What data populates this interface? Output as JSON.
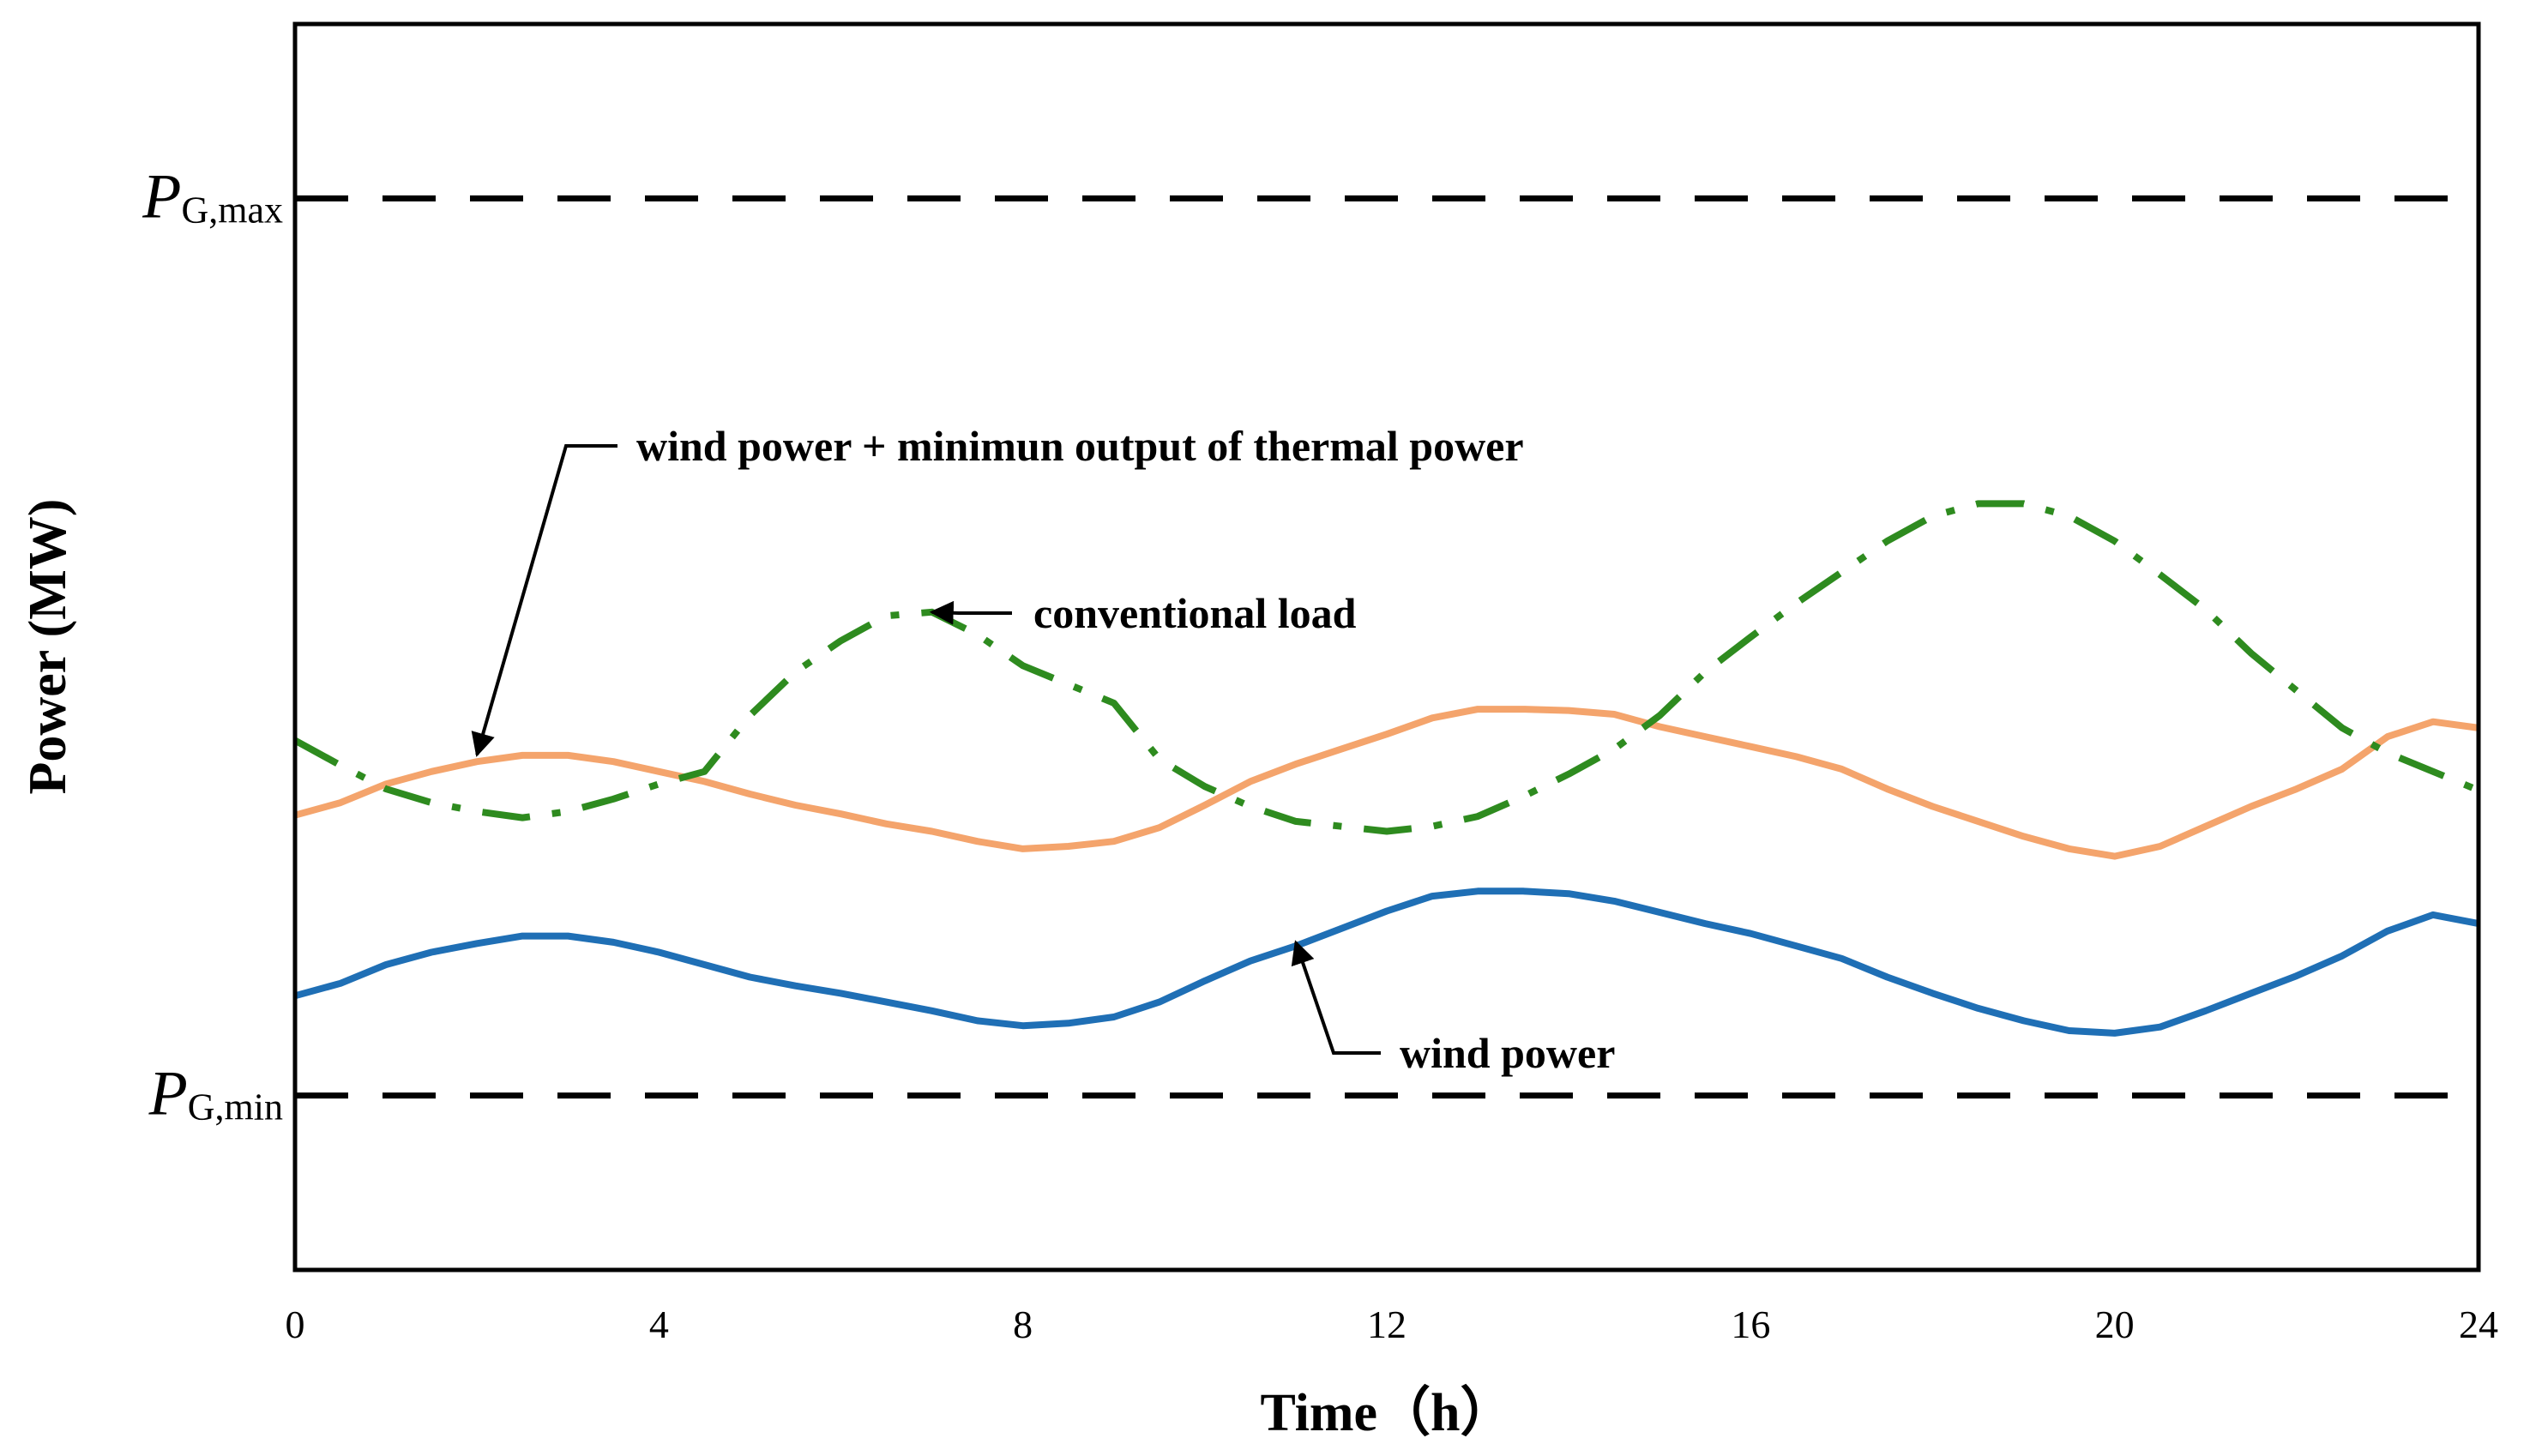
{
  "chart_data": {
    "type": "line",
    "title": "",
    "xlabel": "Time（h）",
    "ylabel": "Power (MW)",
    "xlim": [
      0,
      24
    ],
    "ylim": [
      0,
      100
    ],
    "xticks": [
      "0",
      "4",
      "8",
      "12",
      "16",
      "20",
      "24"
    ],
    "grid": false,
    "reference_lines": [
      {
        "id": "pgmax",
        "prefix": "P",
        "subscript": "G,max",
        "y": 86,
        "style": "dashed",
        "color": "#000000"
      },
      {
        "id": "pgmin",
        "prefix": "P",
        "subscript": "G,min",
        "y": 14,
        "style": "dashed",
        "color": "#000000"
      }
    ],
    "series": [
      {
        "name": "wind power",
        "style": "solid",
        "color": "#1F6FB5",
        "x": [
          0,
          0.5,
          1,
          1.5,
          2,
          2.5,
          3,
          3.5,
          4,
          4.5,
          5,
          5.5,
          6,
          6.5,
          7,
          7.5,
          8,
          8.5,
          9,
          9.5,
          10,
          10.5,
          11,
          11.5,
          12,
          12.5,
          13,
          13.5,
          14,
          14.5,
          15,
          15.5,
          16,
          16.5,
          17,
          17.5,
          18,
          18.5,
          19,
          19.5,
          20,
          20.5,
          21,
          21.5,
          22,
          22.5,
          23,
          23.5,
          24
        ],
        "values": [
          22,
          23,
          24.5,
          25.5,
          26.2,
          26.8,
          26.8,
          26.3,
          25.5,
          24.5,
          23.5,
          22.8,
          22.2,
          21.5,
          20.8,
          20,
          19.6,
          19.8,
          20.3,
          21.5,
          23.2,
          24.8,
          26,
          27.4,
          28.8,
          30,
          30.4,
          30.4,
          30.2,
          29.6,
          28.7,
          27.8,
          27,
          26,
          25,
          23.5,
          22.2,
          21,
          20,
          19.2,
          19,
          19.5,
          20.8,
          22.2,
          23.6,
          25.2,
          27.2,
          28.5,
          27.8
        ]
      },
      {
        "name": "wind power + minimun output of thermal power",
        "style": "solid",
        "color": "#F4A46C",
        "x": [
          0,
          0.5,
          1,
          1.5,
          2,
          2.5,
          3,
          3.5,
          4,
          4.5,
          5,
          5.5,
          6,
          6.5,
          7,
          7.5,
          8,
          8.5,
          9,
          9.5,
          10,
          10.5,
          11,
          11.5,
          12,
          12.5,
          13,
          13.5,
          14,
          14.5,
          15,
          15.5,
          16,
          16.5,
          17,
          17.5,
          18,
          18.5,
          19,
          19.5,
          20,
          20.5,
          21,
          21.5,
          22,
          22.5,
          23,
          23.5,
          24
        ],
        "values": [
          36.5,
          37.5,
          39,
          40,
          40.8,
          41.3,
          41.3,
          40.8,
          40,
          39.2,
          38.2,
          37.3,
          36.6,
          35.8,
          35.2,
          34.4,
          33.8,
          34,
          34.4,
          35.5,
          37.3,
          39.2,
          40.6,
          41.8,
          43,
          44.3,
          45,
          45,
          44.9,
          44.6,
          43.6,
          42.8,
          42,
          41.2,
          40.2,
          38.6,
          37.2,
          36,
          34.8,
          33.8,
          33.2,
          34,
          35.6,
          37.2,
          38.6,
          40.2,
          42.8,
          44,
          43.5
        ]
      },
      {
        "name": "conventional load",
        "style": "dashdot",
        "color": "#2E8B1F",
        "x": [
          0,
          0.5,
          1,
          1.5,
          2,
          2.5,
          3,
          3.5,
          4,
          4.5,
          5,
          5.5,
          6,
          6.5,
          7,
          7.5,
          8,
          8.5,
          9,
          9.5,
          10,
          10.5,
          11,
          11.5,
          12,
          12.5,
          13,
          13.5,
          14,
          14.5,
          15,
          15.5,
          16,
          16.5,
          17,
          17.5,
          18,
          18.5,
          19,
          19.5,
          20,
          20.5,
          21,
          21.5,
          22,
          22.5,
          23,
          23.5,
          24
        ],
        "values": [
          42.5,
          40.5,
          38.6,
          37.5,
          36.8,
          36.3,
          36.8,
          37.8,
          39,
          40,
          44.5,
          48,
          50.5,
          52.5,
          52.8,
          51,
          48.5,
          47,
          45.5,
          41,
          38.8,
          37.2,
          36,
          35.6,
          35.2,
          35.6,
          36.4,
          38,
          39.8,
          41.8,
          44.5,
          48,
          50.8,
          53.5,
          56,
          58.5,
          60.5,
          61.5,
          61.5,
          60.5,
          58.5,
          55.8,
          53,
          49.5,
          46.5,
          43.5,
          41.5,
          40,
          38.5
        ]
      }
    ],
    "annotations": [
      {
        "text": "wind power + minimun output of thermal power",
        "target_series": "wind power + minimun output of thermal power",
        "target_x": 2,
        "target_y": 40.8
      },
      {
        "text": "conventional load",
        "target_series": "conventional load",
        "target_x": 7,
        "target_y": 52.8
      },
      {
        "text": "wind power",
        "target_series": "wind power",
        "target_x": 11,
        "target_y": 26.3
      }
    ]
  }
}
